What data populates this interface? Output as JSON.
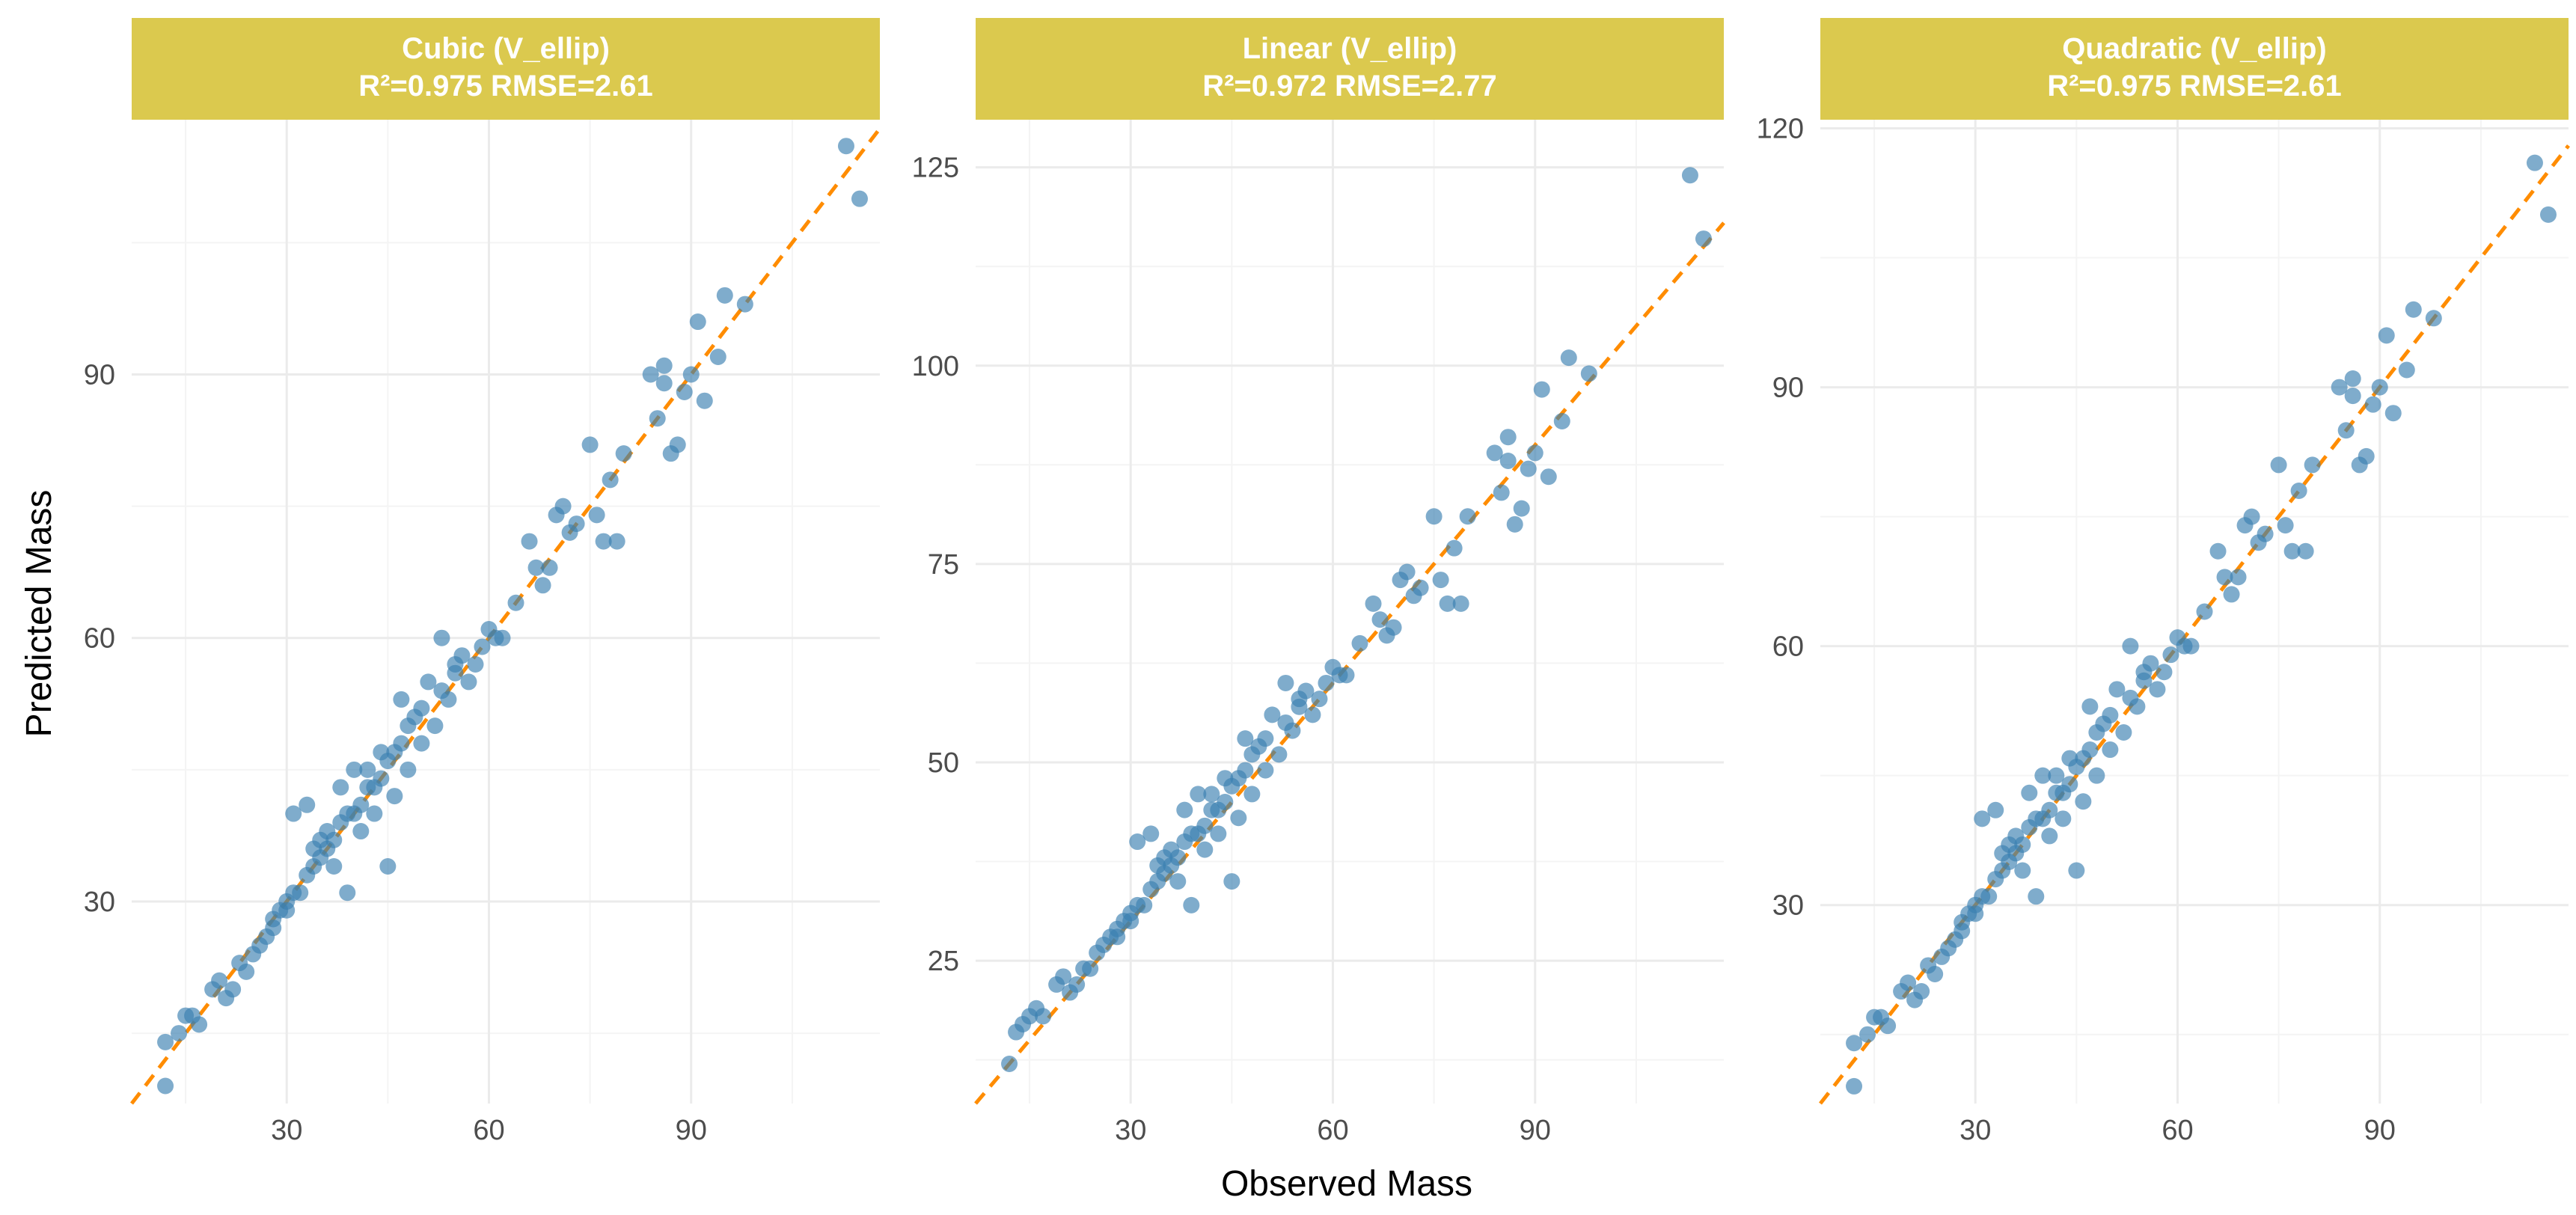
{
  "colors": {
    "strip": "#dbc94e",
    "point": "#3b7fb0",
    "ref_line": "#ff8c00",
    "grid_major": "#ebebeb",
    "grid_minor": "#f4f4f4"
  },
  "chart_data": {
    "type": "scatter",
    "xlabel": "Observed Mass",
    "ylabel": "Predicted Mass",
    "reference_line": "y = x (dashed)",
    "panels": [
      {
        "title_line1": "Cubic (V_ellip)",
        "title_line2": "R²=0.975 RMSE=2.61",
        "xlim": [
          7,
          118
        ],
        "ylim": [
          7,
          119
        ],
        "xticks": [
          30,
          60,
          90
        ],
        "yticks": [
          30,
          60,
          90
        ],
        "xtick_labels": [
          "30",
          "60",
          "90"
        ],
        "ytick_labels": [
          "30",
          "60",
          "90"
        ],
        "points": [
          [
            12,
            9
          ],
          [
            12,
            14
          ],
          [
            14,
            15
          ],
          [
            15,
            17
          ],
          [
            16,
            17
          ],
          [
            17,
            16
          ],
          [
            19,
            20
          ],
          [
            20,
            21
          ],
          [
            21,
            19
          ],
          [
            22,
            20
          ],
          [
            23,
            23
          ],
          [
            24,
            22
          ],
          [
            25,
            24
          ],
          [
            26,
            25
          ],
          [
            27,
            26
          ],
          [
            28,
            28
          ],
          [
            28,
            27
          ],
          [
            29,
            29
          ],
          [
            30,
            30
          ],
          [
            30,
            29
          ],
          [
            31,
            31
          ],
          [
            31,
            40
          ],
          [
            32,
            31
          ],
          [
            33,
            33
          ],
          [
            33,
            41
          ],
          [
            34,
            34
          ],
          [
            34,
            36
          ],
          [
            35,
            35
          ],
          [
            35,
            37
          ],
          [
            36,
            36
          ],
          [
            36,
            38
          ],
          [
            37,
            37
          ],
          [
            37,
            34
          ],
          [
            38,
            39
          ],
          [
            38,
            43
          ],
          [
            39,
            40
          ],
          [
            39,
            31
          ],
          [
            40,
            40
          ],
          [
            40,
            45
          ],
          [
            41,
            41
          ],
          [
            41,
            38
          ],
          [
            42,
            43
          ],
          [
            42,
            45
          ],
          [
            43,
            43
          ],
          [
            43,
            40
          ],
          [
            44,
            44
          ],
          [
            44,
            47
          ],
          [
            45,
            34
          ],
          [
            45,
            46
          ],
          [
            46,
            47
          ],
          [
            46,
            42
          ],
          [
            47,
            53
          ],
          [
            47,
            48
          ],
          [
            48,
            50
          ],
          [
            48,
            45
          ],
          [
            49,
            51
          ],
          [
            50,
            52
          ],
          [
            50,
            48
          ],
          [
            51,
            55
          ],
          [
            52,
            50
          ],
          [
            53,
            54
          ],
          [
            53,
            60
          ],
          [
            54,
            53
          ],
          [
            55,
            56
          ],
          [
            55,
            57
          ],
          [
            56,
            58
          ],
          [
            57,
            55
          ],
          [
            58,
            57
          ],
          [
            59,
            59
          ],
          [
            60,
            61
          ],
          [
            61,
            60
          ],
          [
            62,
            60
          ],
          [
            64,
            64
          ],
          [
            66,
            71
          ],
          [
            67,
            68
          ],
          [
            68,
            66
          ],
          [
            69,
            68
          ],
          [
            70,
            74
          ],
          [
            71,
            75
          ],
          [
            72,
            72
          ],
          [
            73,
            73
          ],
          [
            75,
            82
          ],
          [
            76,
            74
          ],
          [
            77,
            71
          ],
          [
            78,
            78
          ],
          [
            79,
            71
          ],
          [
            80,
            81
          ],
          [
            84,
            90
          ],
          [
            85,
            85
          ],
          [
            86,
            91
          ],
          [
            86,
            89
          ],
          [
            87,
            81
          ],
          [
            88,
            82
          ],
          [
            89,
            88
          ],
          [
            90,
            90
          ],
          [
            91,
            96
          ],
          [
            92,
            87
          ],
          [
            94,
            92
          ],
          [
            95,
            99
          ],
          [
            98,
            98
          ],
          [
            113,
            116
          ],
          [
            115,
            110
          ]
        ]
      },
      {
        "title_line1": "Linear (V_ellip)",
        "title_line2": "R²=0.972 RMSE=2.77",
        "xlim": [
          7,
          118
        ],
        "ylim": [
          7,
          131
        ],
        "xticks": [
          30,
          60,
          90
        ],
        "yticks": [
          25,
          50,
          75,
          100,
          125
        ],
        "xtick_labels": [
          "30",
          "60",
          "90"
        ],
        "ytick_labels": [
          "25",
          "50",
          "75",
          "100",
          "125"
        ],
        "points": [
          [
            12,
            12
          ],
          [
            13,
            16
          ],
          [
            14,
            17
          ],
          [
            15,
            18
          ],
          [
            16,
            19
          ],
          [
            17,
            18
          ],
          [
            19,
            22
          ],
          [
            20,
            23
          ],
          [
            21,
            21
          ],
          [
            22,
            22
          ],
          [
            23,
            24
          ],
          [
            24,
            24
          ],
          [
            25,
            26
          ],
          [
            26,
            27
          ],
          [
            27,
            28
          ],
          [
            28,
            29
          ],
          [
            28,
            28
          ],
          [
            29,
            30
          ],
          [
            30,
            31
          ],
          [
            30,
            30
          ],
          [
            31,
            32
          ],
          [
            31,
            40
          ],
          [
            32,
            32
          ],
          [
            33,
            34
          ],
          [
            33,
            41
          ],
          [
            34,
            35
          ],
          [
            34,
            37
          ],
          [
            35,
            36
          ],
          [
            35,
            38
          ],
          [
            36,
            37
          ],
          [
            36,
            39
          ],
          [
            37,
            38
          ],
          [
            37,
            35
          ],
          [
            38,
            40
          ],
          [
            38,
            44
          ],
          [
            39,
            41
          ],
          [
            39,
            32
          ],
          [
            40,
            41
          ],
          [
            40,
            46
          ],
          [
            41,
            42
          ],
          [
            41,
            39
          ],
          [
            42,
            44
          ],
          [
            42,
            46
          ],
          [
            43,
            44
          ],
          [
            43,
            41
          ],
          [
            44,
            45
          ],
          [
            44,
            48
          ],
          [
            45,
            35
          ],
          [
            45,
            47
          ],
          [
            46,
            48
          ],
          [
            46,
            43
          ],
          [
            47,
            53
          ],
          [
            47,
            49
          ],
          [
            48,
            51
          ],
          [
            48,
            46
          ],
          [
            49,
            52
          ],
          [
            50,
            53
          ],
          [
            50,
            49
          ],
          [
            51,
            56
          ],
          [
            52,
            51
          ],
          [
            53,
            55
          ],
          [
            53,
            60
          ],
          [
            54,
            54
          ],
          [
            55,
            57
          ],
          [
            55,
            58
          ],
          [
            56,
            59
          ],
          [
            57,
            56
          ],
          [
            58,
            58
          ],
          [
            59,
            60
          ],
          [
            60,
            62
          ],
          [
            61,
            61
          ],
          [
            62,
            61
          ],
          [
            64,
            65
          ],
          [
            66,
            70
          ],
          [
            67,
            68
          ],
          [
            68,
            66
          ],
          [
            69,
            67
          ],
          [
            70,
            73
          ],
          [
            71,
            74
          ],
          [
            72,
            71
          ],
          [
            73,
            72
          ],
          [
            75,
            81
          ],
          [
            76,
            73
          ],
          [
            77,
            70
          ],
          [
            78,
            77
          ],
          [
            79,
            70
          ],
          [
            80,
            81
          ],
          [
            84,
            89
          ],
          [
            85,
            84
          ],
          [
            86,
            91
          ],
          [
            86,
            88
          ],
          [
            87,
            80
          ],
          [
            88,
            82
          ],
          [
            89,
            87
          ],
          [
            90,
            89
          ],
          [
            91,
            97
          ],
          [
            92,
            86
          ],
          [
            94,
            93
          ],
          [
            95,
            101
          ],
          [
            98,
            99
          ],
          [
            113,
            124
          ],
          [
            115,
            116
          ]
        ]
      },
      {
        "title_line1": "Quadratic (V_ellip)",
        "title_line2": "R²=0.975 RMSE=2.61",
        "xlim": [
          7,
          118
        ],
        "ylim": [
          7,
          121
        ],
        "xticks": [
          30,
          60,
          90
        ],
        "yticks": [
          30,
          60,
          90,
          120
        ],
        "xtick_labels": [
          "30",
          "60",
          "90"
        ],
        "ytick_labels": [
          "30",
          "60",
          "90",
          "120"
        ],
        "points": [
          [
            12,
            9
          ],
          [
            12,
            14
          ],
          [
            14,
            15
          ],
          [
            15,
            17
          ],
          [
            16,
            17
          ],
          [
            17,
            16
          ],
          [
            19,
            20
          ],
          [
            20,
            21
          ],
          [
            21,
            19
          ],
          [
            22,
            20
          ],
          [
            23,
            23
          ],
          [
            24,
            22
          ],
          [
            25,
            24
          ],
          [
            26,
            25
          ],
          [
            27,
            26
          ],
          [
            28,
            28
          ],
          [
            28,
            27
          ],
          [
            29,
            29
          ],
          [
            30,
            30
          ],
          [
            30,
            29
          ],
          [
            31,
            31
          ],
          [
            31,
            40
          ],
          [
            32,
            31
          ],
          [
            33,
            33
          ],
          [
            33,
            41
          ],
          [
            34,
            34
          ],
          [
            34,
            36
          ],
          [
            35,
            35
          ],
          [
            35,
            37
          ],
          [
            36,
            36
          ],
          [
            36,
            38
          ],
          [
            37,
            37
          ],
          [
            37,
            34
          ],
          [
            38,
            39
          ],
          [
            38,
            43
          ],
          [
            39,
            40
          ],
          [
            39,
            31
          ],
          [
            40,
            40
          ],
          [
            40,
            45
          ],
          [
            41,
            41
          ],
          [
            41,
            38
          ],
          [
            42,
            43
          ],
          [
            42,
            45
          ],
          [
            43,
            43
          ],
          [
            43,
            40
          ],
          [
            44,
            44
          ],
          [
            44,
            47
          ],
          [
            45,
            34
          ],
          [
            45,
            46
          ],
          [
            46,
            47
          ],
          [
            46,
            42
          ],
          [
            47,
            53
          ],
          [
            47,
            48
          ],
          [
            48,
            50
          ],
          [
            48,
            45
          ],
          [
            49,
            51
          ],
          [
            50,
            52
          ],
          [
            50,
            48
          ],
          [
            51,
            55
          ],
          [
            52,
            50
          ],
          [
            53,
            54
          ],
          [
            53,
            60
          ],
          [
            54,
            53
          ],
          [
            55,
            56
          ],
          [
            55,
            57
          ],
          [
            56,
            58
          ],
          [
            57,
            55
          ],
          [
            58,
            57
          ],
          [
            59,
            59
          ],
          [
            60,
            61
          ],
          [
            61,
            60
          ],
          [
            62,
            60
          ],
          [
            64,
            64
          ],
          [
            66,
            71
          ],
          [
            67,
            68
          ],
          [
            68,
            66
          ],
          [
            69,
            68
          ],
          [
            70,
            74
          ],
          [
            71,
            75
          ],
          [
            72,
            72
          ],
          [
            73,
            73
          ],
          [
            75,
            81
          ],
          [
            76,
            74
          ],
          [
            77,
            71
          ],
          [
            78,
            78
          ],
          [
            79,
            71
          ],
          [
            80,
            81
          ],
          [
            84,
            90
          ],
          [
            85,
            85
          ],
          [
            86,
            91
          ],
          [
            86,
            89
          ],
          [
            87,
            81
          ],
          [
            88,
            82
          ],
          [
            89,
            88
          ],
          [
            90,
            90
          ],
          [
            91,
            96
          ],
          [
            92,
            87
          ],
          [
            94,
            92
          ],
          [
            95,
            99
          ],
          [
            98,
            98
          ],
          [
            113,
            116
          ],
          [
            115,
            110
          ]
        ]
      }
    ]
  }
}
